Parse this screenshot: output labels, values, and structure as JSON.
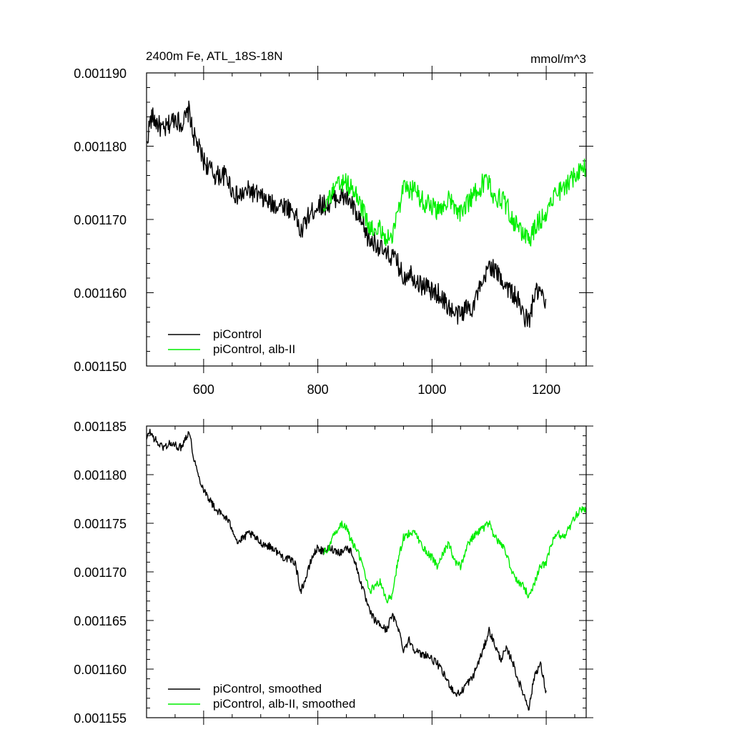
{
  "colors": {
    "control": "#000000",
    "alb": "#00ee00"
  },
  "chart_data": [
    {
      "type": "line",
      "title": "2400m Fe, ATL_18S-18N",
      "units": "mmol/m^3",
      "xlim": [
        500,
        1270
      ],
      "ylim": [
        0.00115,
        0.00119
      ],
      "xticks": [
        "600",
        "800",
        "1000",
        "1200"
      ],
      "yticks": [
        "0.001150",
        "0.001160",
        "0.001170",
        "0.001180",
        "0.001190"
      ],
      "grid": false,
      "legend_position": "bottom-left",
      "series": [
        {
          "name": "piControl",
          "color": "#000000",
          "noise": 1.4e-06,
          "x": [
            500,
            505,
            510,
            520,
            530,
            540,
            550,
            560,
            570,
            575,
            580,
            590,
            600,
            620,
            640,
            650,
            660,
            680,
            700,
            720,
            740,
            760,
            770,
            780,
            790,
            800,
            810,
            820,
            830,
            840,
            850,
            860,
            870,
            880,
            890,
            900,
            910,
            920,
            930,
            940,
            950,
            960,
            970,
            980,
            990,
            1000,
            1010,
            1020,
            1030,
            1040,
            1050,
            1060,
            1070,
            1080,
            1090,
            1100,
            1110,
            1120,
            1130,
            1140,
            1150,
            1160,
            1170,
            1180,
            1190,
            1200
          ],
          "y": [
            0.00118,
            0.001183,
            0.001184,
            0.001183,
            0.001182,
            0.001183,
            0.001184,
            0.001183,
            0.001184,
            0.001185,
            0.001182,
            0.00118,
            0.001178,
            0.001176,
            0.001176,
            0.001174,
            0.001173,
            0.001174,
            0.001173,
            0.001172,
            0.001172,
            0.001171,
            0.001168,
            0.00117,
            0.001171,
            0.001172,
            0.001172,
            0.001172,
            0.001173,
            0.001173,
            0.001173,
            0.001172,
            0.00117,
            0.001169,
            0.001167,
            0.001167,
            0.001166,
            0.001165,
            0.001165,
            0.001164,
            0.001162,
            0.001163,
            0.001162,
            0.001161,
            0.001161,
            0.00116,
            0.00116,
            0.001159,
            0.001158,
            0.001157,
            0.001157,
            0.001158,
            0.001158,
            0.00116,
            0.001161,
            0.001164,
            0.001163,
            0.001162,
            0.001161,
            0.00116,
            0.001159,
            0.001157,
            0.001156,
            0.00116,
            0.00116,
            0.001158
          ]
        },
        {
          "name": "piControl, alb-II",
          "color": "#00ee00",
          "noise": 1.4e-06,
          "x": [
            810,
            820,
            830,
            840,
            850,
            860,
            870,
            880,
            890,
            900,
            910,
            920,
            930,
            940,
            950,
            960,
            970,
            980,
            990,
            1000,
            1010,
            1020,
            1030,
            1040,
            1050,
            1060,
            1070,
            1080,
            1090,
            1100,
            1110,
            1120,
            1130,
            1140,
            1150,
            1160,
            1170,
            1180,
            1190,
            1200,
            1210,
            1220,
            1230,
            1240,
            1250,
            1260,
            1270
          ],
          "y": [
            0.001172,
            0.001173,
            0.001174,
            0.001175,
            0.001175,
            0.001174,
            0.001173,
            0.001171,
            0.001169,
            0.001168,
            0.001169,
            0.001167,
            0.001168,
            0.001171,
            0.001174,
            0.001174,
            0.001174,
            0.001173,
            0.001172,
            0.001172,
            0.001171,
            0.001172,
            0.001173,
            0.001171,
            0.001171,
            0.001172,
            0.001173,
            0.001174,
            0.001175,
            0.001175,
            0.001173,
            0.001173,
            0.001172,
            0.00117,
            0.001169,
            0.001168,
            0.001167,
            0.001169,
            0.00117,
            0.001171,
            0.001173,
            0.001174,
            0.001174,
            0.001175,
            0.001176,
            0.001177,
            0.001177
          ]
        }
      ]
    },
    {
      "type": "line",
      "title": "",
      "xlim": [
        500,
        1270
      ],
      "ylim": [
        0.001155,
        0.001185
      ],
      "xticks": [
        "",
        "",
        "",
        ""
      ],
      "yticks": [
        "0.001155",
        "0.001160",
        "0.001165",
        "0.001170",
        "0.001175",
        "0.001180",
        "0.001185"
      ],
      "grid": false,
      "legend_position": "bottom-left",
      "series": [
        {
          "name": "piControl, smoothed",
          "color": "#000000",
          "noise": 4e-07,
          "x": [
            500,
            505,
            510,
            520,
            530,
            540,
            550,
            560,
            570,
            575,
            580,
            590,
            600,
            620,
            640,
            650,
            660,
            680,
            700,
            720,
            740,
            760,
            770,
            780,
            790,
            800,
            810,
            820,
            830,
            840,
            850,
            860,
            870,
            880,
            890,
            900,
            910,
            920,
            930,
            940,
            950,
            960,
            970,
            980,
            990,
            1000,
            1010,
            1020,
            1030,
            1040,
            1050,
            1060,
            1070,
            1080,
            1090,
            1100,
            1110,
            1120,
            1130,
            1140,
            1150,
            1160,
            1170,
            1180,
            1190,
            1200
          ],
          "y": [
            0.0011835,
            0.0011845,
            0.001184,
            0.0011832,
            0.0011828,
            0.0011832,
            0.001183,
            0.0011828,
            0.001184,
            0.0011845,
            0.0011825,
            0.00118,
            0.0011785,
            0.0011765,
            0.0011755,
            0.0011745,
            0.001173,
            0.001174,
            0.001173,
            0.0011725,
            0.0011715,
            0.001171,
            0.001168,
            0.0011695,
            0.0011715,
            0.0011725,
            0.001172,
            0.0011725,
            0.0011722,
            0.001172,
            0.0011725,
            0.001172,
            0.00117,
            0.001168,
            0.001166,
            0.001165,
            0.0011645,
            0.001164,
            0.0011655,
            0.0011645,
            0.001162,
            0.001163,
            0.001162,
            0.0011615,
            0.0011615,
            0.001161,
            0.0011605,
            0.0011595,
            0.0011585,
            0.0011575,
            0.0011575,
            0.0011585,
            0.001159,
            0.0011605,
            0.001162,
            0.001164,
            0.0011625,
            0.001161,
            0.001162,
            0.001161,
            0.001159,
            0.0011575,
            0.001156,
            0.0011595,
            0.0011605,
            0.0011575
          ]
        },
        {
          "name": "piControl, alb-II, smoothed",
          "color": "#00ee00",
          "noise": 4e-07,
          "x": [
            810,
            820,
            830,
            840,
            850,
            860,
            870,
            880,
            890,
            900,
            910,
            920,
            930,
            940,
            950,
            960,
            970,
            980,
            990,
            1000,
            1010,
            1020,
            1030,
            1040,
            1050,
            1060,
            1070,
            1080,
            1090,
            1100,
            1110,
            1120,
            1130,
            1140,
            1150,
            1160,
            1170,
            1180,
            1190,
            1200,
            1210,
            1220,
            1230,
            1240,
            1250,
            1260,
            1270
          ],
          "y": [
            0.001172,
            0.0011725,
            0.001174,
            0.001175,
            0.0011745,
            0.001173,
            0.001172,
            0.0011705,
            0.001168,
            0.0011685,
            0.001169,
            0.001167,
            0.0011675,
            0.001171,
            0.0011735,
            0.001174,
            0.001174,
            0.001173,
            0.001172,
            0.0011715,
            0.0011705,
            0.001172,
            0.001173,
            0.001171,
            0.0011705,
            0.0011725,
            0.0011735,
            0.001174,
            0.0011745,
            0.001175,
            0.0011735,
            0.001173,
            0.001172,
            0.00117,
            0.001169,
            0.0011685,
            0.0011675,
            0.001169,
            0.0011705,
            0.001171,
            0.001173,
            0.001174,
            0.0011735,
            0.0011745,
            0.0011755,
            0.0011765,
            0.0011765
          ]
        }
      ]
    }
  ]
}
